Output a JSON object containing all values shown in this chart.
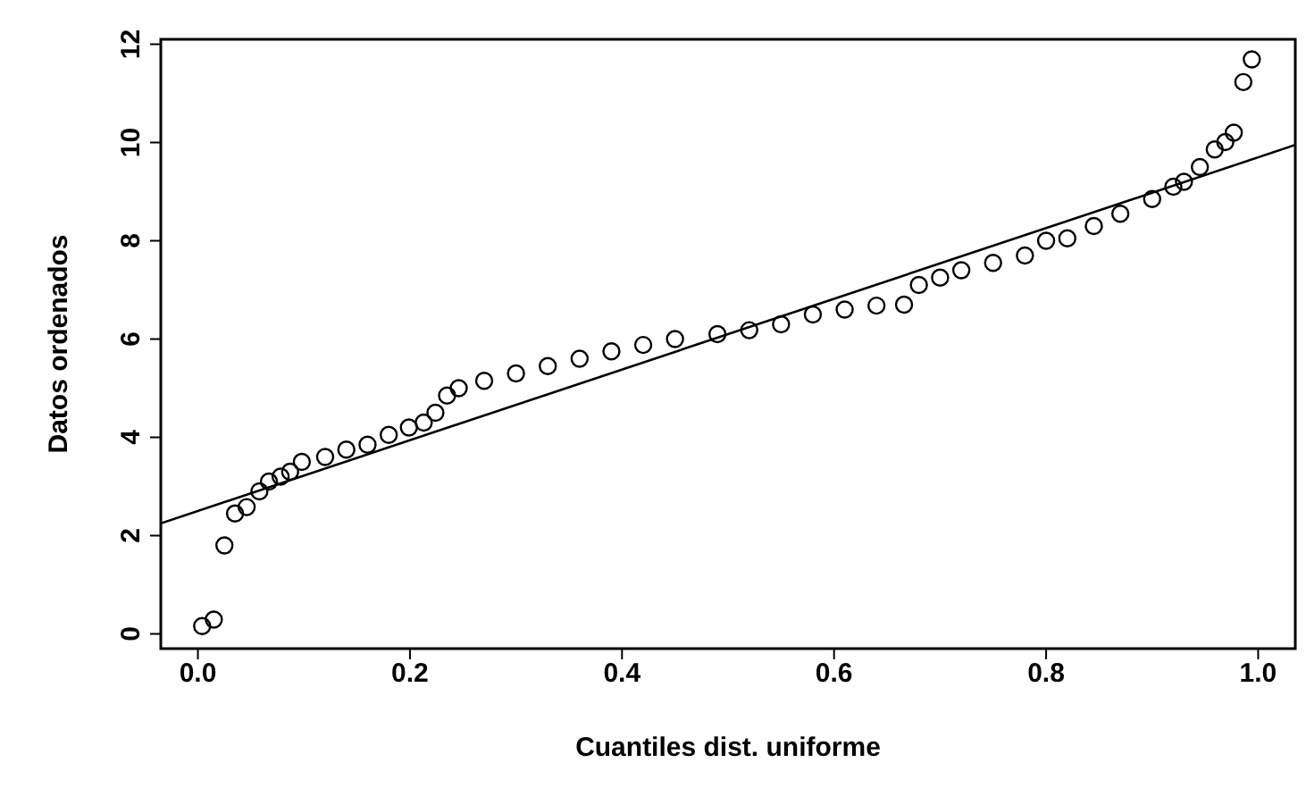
{
  "chart_data": {
    "type": "scatter",
    "xlabel": "Cuantiles dist. uniforme",
    "ylabel": "Datos ordenados",
    "xlim": [
      -0.035,
      1.035
    ],
    "ylim": [
      -0.3,
      12.1
    ],
    "xticks": [
      {
        "value": 0,
        "label": "0.0"
      },
      0.2,
      0.4,
      0.6,
      0.8,
      {
        "value": 1,
        "label": "1.0"
      }
    ],
    "yticks": [
      0,
      2,
      4,
      6,
      8,
      10,
      12
    ],
    "grid": false,
    "legend": false,
    "series": [
      {
        "marker": "circle",
        "color": "#000000",
        "x": [
          0.004,
          0.015,
          0.025,
          0.035,
          0.046,
          0.058,
          0.067,
          0.078,
          0.087,
          0.098,
          0.12,
          0.14,
          0.16,
          0.18,
          0.199,
          0.213,
          0.224,
          0.235,
          0.246,
          0.27,
          0.3,
          0.33,
          0.36,
          0.39,
          0.42,
          0.45,
          0.49,
          0.52,
          0.55,
          0.58,
          0.61,
          0.64,
          0.666,
          0.68,
          0.7,
          0.72,
          0.75,
          0.78,
          0.8,
          0.82,
          0.845,
          0.87,
          0.9,
          0.92,
          0.93,
          0.945,
          0.959,
          0.969,
          0.977,
          0.986,
          0.994
        ],
        "values": [
          0.16,
          0.29,
          1.8,
          2.45,
          2.58,
          2.9,
          3.1,
          3.2,
          3.3,
          3.5,
          3.6,
          3.75,
          3.85,
          4.05,
          4.2,
          4.3,
          4.5,
          4.85,
          5.0,
          5.15,
          5.3,
          5.45,
          5.6,
          5.75,
          5.88,
          6.0,
          6.1,
          6.18,
          6.3,
          6.5,
          6.6,
          6.68,
          6.7,
          7.1,
          7.25,
          7.4,
          7.55,
          7.7,
          8.0,
          8.05,
          8.3,
          8.55,
          8.85,
          9.1,
          9.2,
          9.5,
          9.86,
          10.01,
          10.2,
          11.23,
          11.69
        ]
      },
      {
        "type": "line",
        "color": "#000000",
        "x": [
          -0.035,
          1.035
        ],
        "values": [
          2.25,
          9.95
        ],
        "line_style": "solid"
      }
    ]
  }
}
